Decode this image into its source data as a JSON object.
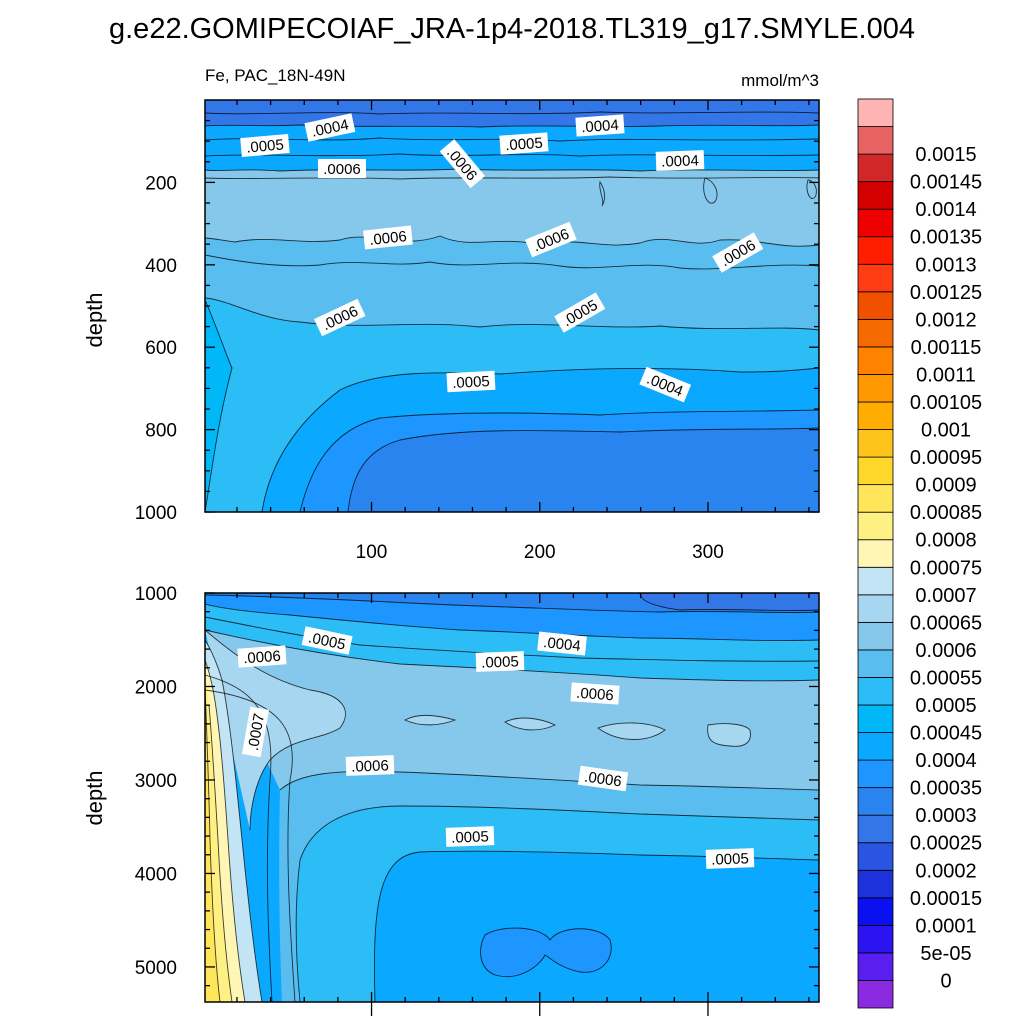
{
  "title": "g.e22.GOMIPECOIAF_JRA-1p4-2018.TL319_g17.SMYLE.004",
  "subtitle_left": "Fe, PAC_18N-49N",
  "subtitle_right": "mmol/m^3",
  "colors": {
    "level_colors": [
      "#8a2be2",
      "#5b1ef0",
      "#2c14f2",
      "#0a10f0",
      "#1e32dc",
      "#2a55e2",
      "#3276e8",
      "#2a84f0",
      "#1e96ff",
      "#0aa8ff",
      "#00b8f8",
      "#2cbcf6",
      "#5abdf0",
      "#86c7ec",
      "#a6d6f0",
      "#c2e4f4",
      "#fff5b4",
      "#fff084",
      "#ffe55a",
      "#ffd72a",
      "#ffc41c",
      "#ffae00",
      "#ff9800",
      "#ff8200",
      "#f56a00",
      "#f05000",
      "#ff3c14",
      "#ff1e00",
      "#ee0000",
      "#d30000",
      "#d02828",
      "#e86464",
      "#ffb4b4"
    ]
  },
  "chart_data": [
    {
      "type": "heatmap",
      "panel": "top",
      "variable": "Fe",
      "region": "PAC_18N-49N",
      "units": "mmol/m^3",
      "ylabel": "depth",
      "x_ticks": [
        "100",
        "200",
        "300"
      ],
      "x_tick_values": [
        100,
        200,
        300
      ],
      "xlim": [
        1,
        366
      ],
      "y_ticks": [
        "200",
        "400",
        "600",
        "800",
        "1000"
      ],
      "y_tick_values": [
        200,
        400,
        600,
        800,
        1000
      ],
      "ylim": [
        0,
        1000
      ],
      "y_reversed": true,
      "depth_profile": [
        {
          "depth": 50,
          "value": 0.0004
        },
        {
          "depth": 90,
          "value": 0.0005
        },
        {
          "depth": 150,
          "value": 0.0006
        },
        {
          "depth": 250,
          "value": 0.00065
        },
        {
          "depth": 380,
          "value": 0.0006
        },
        {
          "depth": 470,
          "value": 0.00055
        },
        {
          "depth": 570,
          "value": 0.0005
        },
        {
          "depth": 680,
          "value": 0.00045
        },
        {
          "depth": 850,
          "value": 0.0004
        },
        {
          "depth": 980,
          "value": 0.00035
        }
      ],
      "contour_labels": [
        ".0004",
        ".0005",
        ".0006",
        ".0004",
        ".0005",
        ".0004",
        ".0006",
        ".0006",
        ".0006",
        ".0006",
        ".0006",
        ".0005",
        ".0005",
        ".0004",
        ".0004"
      ]
    },
    {
      "type": "heatmap",
      "panel": "bottom",
      "variable": "Fe",
      "region": "PAC_18N-49N",
      "units": "mmol/m^3",
      "ylabel": "depth",
      "x_tick_values": [
        100,
        200,
        300
      ],
      "xlim": [
        1,
        366
      ],
      "y_ticks": [
        "1000",
        "2000",
        "3000",
        "4000",
        "5000"
      ],
      "y_tick_values": [
        1000,
        2000,
        3000,
        4000,
        5000
      ],
      "ylim": [
        1000,
        5375
      ],
      "y_reversed": true,
      "depth_profile": [
        {
          "depth": 1100,
          "value": 0.0004
        },
        {
          "depth": 1500,
          "value": 0.0005
        },
        {
          "depth": 1900,
          "value": 0.0006
        },
        {
          "depth": 2400,
          "value": 0.00065
        },
        {
          "depth": 3000,
          "value": 0.0006
        },
        {
          "depth": 3500,
          "value": 0.00055
        },
        {
          "depth": 4300,
          "value": 0.0005
        },
        {
          "depth": 4800,
          "value": 0.00045
        }
      ],
      "near_x1_max": 0.00095,
      "contour_labels": [
        ".0005",
        ".0004",
        ".0006",
        ".0005",
        ".0006",
        ".0007",
        ".0006",
        ".0006",
        ".0005",
        ".0005"
      ]
    }
  ],
  "colorbar": {
    "levels": [
      "0",
      "5e-05",
      "0.0001",
      "0.00015",
      "0.0002",
      "0.00025",
      "0.0003",
      "0.00035",
      "0.0004",
      "0.00045",
      "0.0005",
      "0.00055",
      "0.0006",
      "0.00065",
      "0.0007",
      "0.00075",
      "0.0008",
      "0.00085",
      "0.0009",
      "0.00095",
      "0.001",
      "0.00105",
      "0.0011",
      "0.00115",
      "0.0012",
      "0.00125",
      "0.0013",
      "0.00135",
      "0.0014",
      "0.00145",
      "0.0015"
    ]
  }
}
